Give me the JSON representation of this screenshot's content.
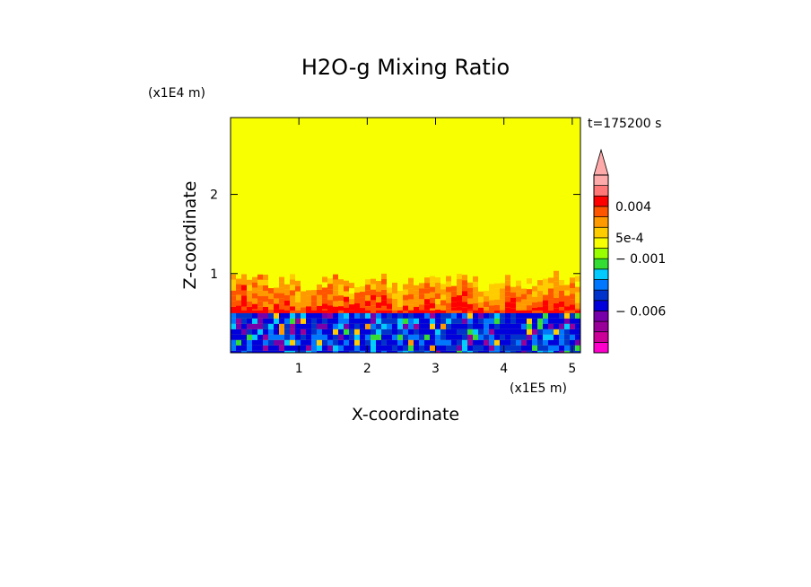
{
  "chart_data": {
    "type": "heatmap",
    "title": "H2O-g Mixing Ratio",
    "xlabel": "X-coordinate",
    "ylabel": "Z-coordinate",
    "x_scale_label": "(x1E5 m)",
    "y_scale_label": "(x1E4 m)",
    "time_label": "t=175200 s",
    "xlim": [
      0,
      5.12
    ],
    "ylim": [
      0,
      2.97
    ],
    "x_ticks": [
      "1",
      "2",
      "3",
      "4",
      "5"
    ],
    "y_ticks": [
      "1",
      "2"
    ],
    "colorbar": {
      "labels": [
        "0.004",
        "5e-4",
        "− 0.001",
        "− 0.006"
      ],
      "colors": [
        "#ff00cc",
        "#cc0099",
        "#990099",
        "#7700aa",
        "#0000dd",
        "#0033cc",
        "#0077ff",
        "#00ccff",
        "#33dd33",
        "#99ff00",
        "#f7ff00",
        "#ffcc00",
        "#ff9900",
        "#ff5500",
        "#ff0000",
        "#ff7777",
        "#ffaaaa"
      ],
      "extend": "max"
    },
    "field_description_values": {
      "background_upper": 0.0,
      "boundary_layer_top_z": 1.0,
      "dry_layer_top_z": 0.5
    }
  }
}
